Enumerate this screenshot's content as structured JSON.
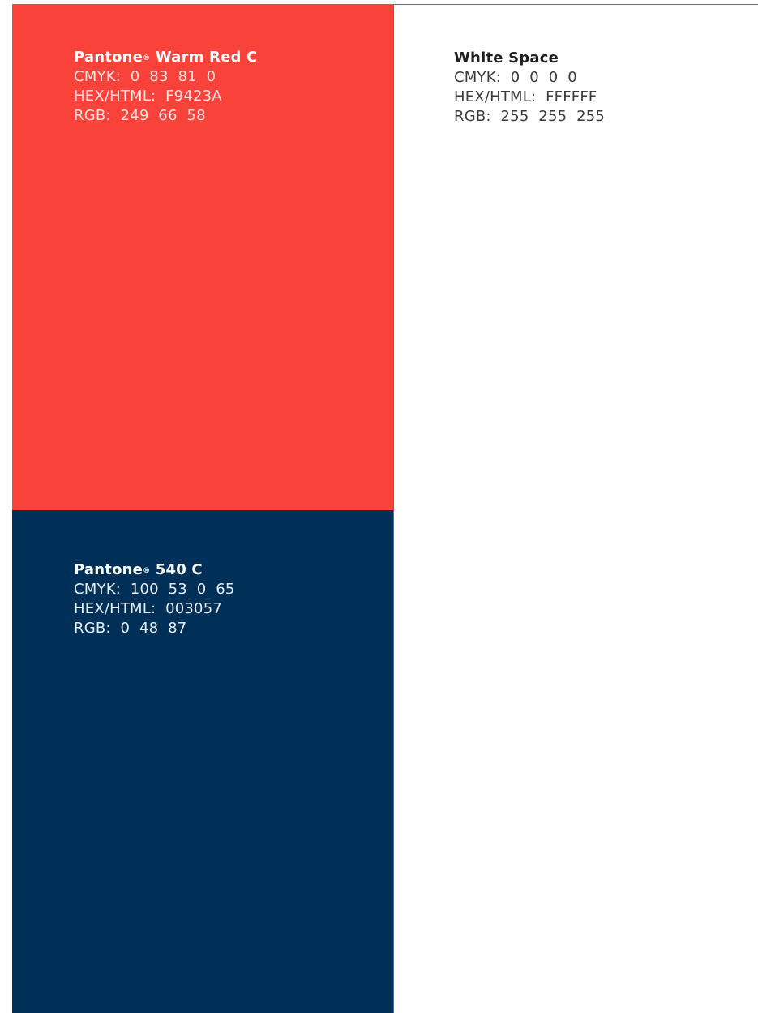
{
  "swatches": {
    "warm_red": {
      "name_prefix": "Pantone",
      "registered_mark": "®",
      "name_suffix": " Warm Red C",
      "cmyk": "CMYK:  0  83  81  0",
      "hex": "HEX/HTML:  F9423A",
      "rgb": "RGB:  249  66  58",
      "color": "#F9423A"
    },
    "white_space": {
      "name": "White Space",
      "cmyk": "CMYK:  0  0  0  0",
      "hex": "HEX/HTML:  FFFFFF",
      "rgb": "RGB:  255  255  255",
      "color": "#FFFFFF"
    },
    "pantone_540": {
      "name_prefix": "Pantone",
      "registered_mark": "®",
      "name_suffix": " 540 C",
      "cmyk": "CMYK:  100  53  0  65",
      "hex": "HEX/HTML:  003057",
      "rgb": "RGB:  0  48  87",
      "color": "#003057"
    }
  }
}
